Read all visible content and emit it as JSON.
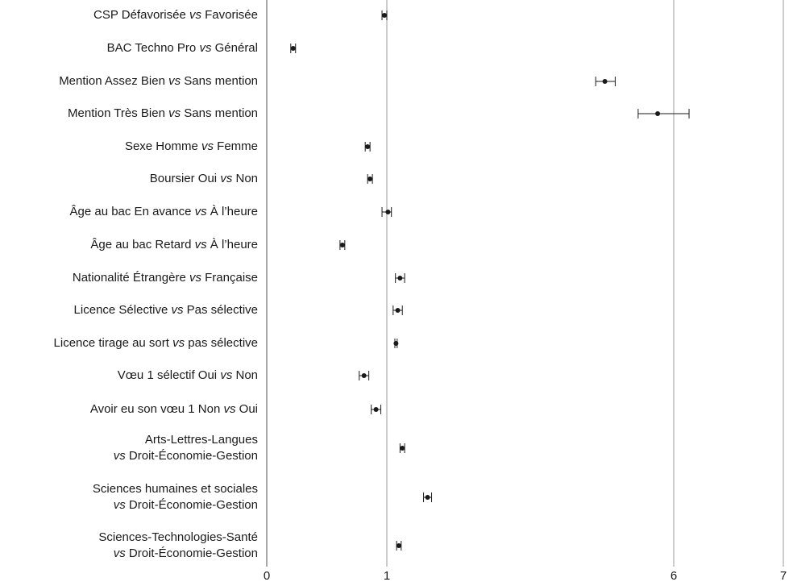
{
  "chart_data": {
    "type": "scatter",
    "x_axis": {
      "ticks": [
        0,
        1,
        6,
        7
      ],
      "scale": "piecewise"
    },
    "grid": {
      "vertical_lines_at": [
        0,
        1,
        6,
        7
      ]
    },
    "rows": [
      {
        "lines": [
          {
            "pre": "CSP Défavorisée ",
            "em": "vs",
            "post": " Favorisée"
          }
        ],
        "estimate": 0.98,
        "ci_low": 0.96,
        "ci_high": 1.0
      },
      {
        "lines": [
          {
            "pre": "BAC Techno Pro ",
            "em": "vs",
            "post": " Général"
          }
        ],
        "estimate": 0.22,
        "ci_low": 0.2,
        "ci_high": 0.24
      },
      {
        "lines": [
          {
            "pre": "Mention Assez Bien ",
            "em": "vs",
            "post": " Sans mention"
          }
        ],
        "estimate": 4.8,
        "ci_low": 4.64,
        "ci_high": 4.98
      },
      {
        "lines": [
          {
            "pre": "Mention Très Bien ",
            "em": "vs",
            "post": " Sans mention"
          }
        ],
        "estimate": 5.72,
        "ci_low": 5.38,
        "ci_high": 6.14
      },
      {
        "lines": [
          {
            "pre": "Sexe Homme ",
            "em": "vs",
            "post": " Femme"
          }
        ],
        "estimate": 0.84,
        "ci_low": 0.82,
        "ci_high": 0.86
      },
      {
        "lines": [
          {
            "pre": "Boursier Oui ",
            "em": "vs",
            "post": " Non"
          }
        ],
        "estimate": 0.86,
        "ci_low": 0.84,
        "ci_high": 0.88
      },
      {
        "lines": [
          {
            "pre": "Âge au bac En avance ",
            "em": "vs",
            "post": " À l’heure"
          }
        ],
        "estimate": 1.02,
        "ci_low": 0.96,
        "ci_high": 1.08
      },
      {
        "lines": [
          {
            "pre": "Âge au bac Retard ",
            "em": "vs",
            "post": " À l’heure"
          }
        ],
        "estimate": 0.63,
        "ci_low": 0.61,
        "ci_high": 0.65
      },
      {
        "lines": [
          {
            "pre": "Nationalité Étrangère ",
            "em": "vs",
            "post": " Française"
          }
        ],
        "estimate": 1.23,
        "ci_low": 1.15,
        "ci_high": 1.31
      },
      {
        "lines": [
          {
            "pre": "Licence Sélective ",
            "em": "vs",
            "post": " Pas sélective"
          }
        ],
        "estimate": 1.19,
        "ci_low": 1.11,
        "ci_high": 1.27
      },
      {
        "lines": [
          {
            "pre": "Licence tirage au sort ",
            "em": "vs",
            "post": " pas sélective"
          }
        ],
        "estimate": 1.16,
        "ci_low": 1.14,
        "ci_high": 1.18
      },
      {
        "lines": [
          {
            "pre": "Vœu 1 sélectif Oui ",
            "em": "vs",
            "post": " Non"
          }
        ],
        "estimate": 0.81,
        "ci_low": 0.77,
        "ci_high": 0.85
      },
      {
        "lines": [
          {
            "pre": "Avoir eu son vœu 1 Non ",
            "em": "vs",
            "post": " Oui"
          }
        ],
        "estimate": 0.91,
        "ci_low": 0.87,
        "ci_high": 0.95
      },
      {
        "lines": [
          {
            "pre": "Arts-Lettres-Langues",
            "em": "",
            "post": ""
          },
          {
            "pre": "",
            "em": "vs",
            "post": " Droit-Économie-Gestion"
          }
        ],
        "estimate": 1.27,
        "ci_low": 1.23,
        "ci_high": 1.31
      },
      {
        "lines": [
          {
            "pre": "Sciences humaines et sociales",
            "em": "",
            "post": ""
          },
          {
            "pre": "",
            "em": "vs",
            "post": " Droit-Économie-Gestion"
          }
        ],
        "estimate": 1.71,
        "ci_low": 1.64,
        "ci_high": 1.78
      },
      {
        "lines": [
          {
            "pre": "Sciences-Technologies-Santé",
            "em": "",
            "post": ""
          },
          {
            "pre": "",
            "em": "vs",
            "post": " Droit-Économie-Gestion"
          }
        ],
        "estimate": 1.21,
        "ci_low": 1.17,
        "ci_high": 1.25
      }
    ]
  }
}
